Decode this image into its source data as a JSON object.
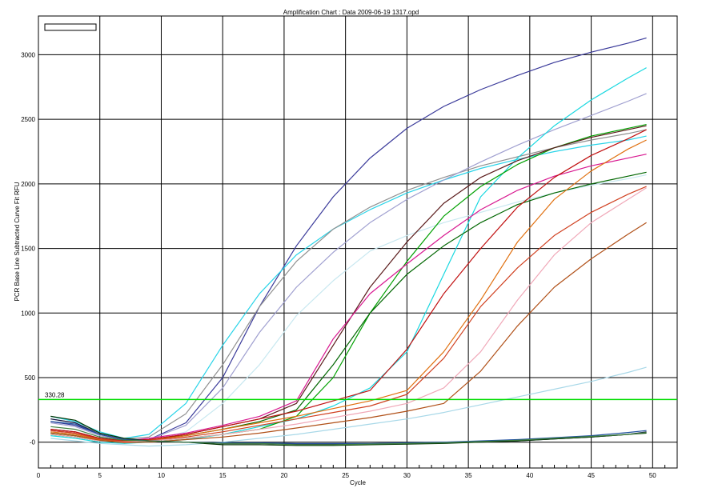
{
  "chart_data": {
    "type": "line",
    "title": "Amplification Chart : Data 2009-06-19 1317.opd",
    "xlabel": "Cycle",
    "ylabel": "PCR Base Line Subtracted Curve Fit RFU",
    "xlim": [
      0,
      52
    ],
    "ylim": [
      -200,
      3300
    ],
    "x_ticks": [
      0,
      5,
      10,
      15,
      20,
      25,
      30,
      35,
      40,
      45,
      50
    ],
    "y_ticks": [
      0,
      500,
      1000,
      1500,
      2000,
      2500,
      3000
    ],
    "y_tick_labels": [
      "-0",
      "500",
      "1000",
      "1500",
      "2000",
      "2500",
      "3000"
    ],
    "grid": true,
    "legend": "top-left (empty box)",
    "threshold": {
      "value": 330.28,
      "label": "330.28",
      "color": "#00dd00"
    },
    "series": [
      {
        "color": "#3a3a9a",
        "x": [
          1,
          3,
          5,
          7,
          9,
          12,
          15,
          18,
          21,
          24,
          27,
          30,
          33,
          36,
          39,
          42,
          45,
          48,
          49.5
        ],
        "y": [
          160,
          130,
          60,
          20,
          20,
          150,
          500,
          1050,
          1520,
          1900,
          2200,
          2430,
          2600,
          2730,
          2840,
          2940,
          3020,
          3090,
          3130
        ]
      },
      {
        "color": "#2ad4e8",
        "x": [
          1,
          3,
          5,
          7,
          9,
          12,
          15,
          18,
          21,
          24,
          27,
          30,
          33,
          36,
          39,
          42,
          45,
          48,
          49.5
        ],
        "y": [
          200,
          160,
          80,
          30,
          60,
          300,
          750,
          1150,
          1450,
          1650,
          1800,
          1930,
          2030,
          2120,
          2190,
          2250,
          2300,
          2340,
          2370
        ]
      },
      {
        "color": "#909090",
        "x": [
          1,
          3,
          5,
          7,
          9,
          12,
          15,
          18,
          21,
          24,
          27,
          30,
          33,
          36,
          39,
          42,
          45,
          48,
          49.5
        ],
        "y": [
          180,
          150,
          70,
          25,
          40,
          220,
          600,
          1050,
          1400,
          1650,
          1820,
          1950,
          2050,
          2140,
          2210,
          2280,
          2340,
          2390,
          2420
        ]
      },
      {
        "color": "#a0a0d0",
        "x": [
          1,
          3,
          5,
          7,
          9,
          12,
          15,
          18,
          21,
          24,
          27,
          30,
          33,
          36,
          39,
          42,
          45,
          48,
          49.5
        ],
        "y": [
          150,
          120,
          50,
          15,
          20,
          130,
          420,
          850,
          1200,
          1470,
          1700,
          1880,
          2030,
          2170,
          2300,
          2420,
          2530,
          2640,
          2700
        ]
      },
      {
        "color": "#c8e8f0",
        "x": [
          1,
          3,
          5,
          7,
          9,
          12,
          15,
          18,
          21,
          24,
          27,
          30,
          33,
          36,
          39,
          42,
          45,
          48,
          49.5
        ],
        "y": [
          80,
          60,
          20,
          0,
          10,
          80,
          300,
          600,
          980,
          1250,
          1480,
          1600,
          1700,
          1780,
          1860,
          1930,
          1990,
          2040,
          2070
        ]
      },
      {
        "color": "#18d8e0",
        "x": [
          1,
          3,
          5,
          7,
          9,
          12,
          15,
          18,
          21,
          24,
          27,
          30,
          33,
          36,
          39,
          42,
          45,
          48,
          49.5
        ],
        "y": [
          50,
          30,
          0,
          -10,
          0,
          20,
          60,
          120,
          180,
          280,
          420,
          700,
          1300,
          1900,
          2200,
          2450,
          2650,
          2820,
          2900
        ]
      },
      {
        "color": "#00a000",
        "x": [
          1,
          3,
          5,
          7,
          9,
          12,
          15,
          18,
          21,
          24,
          27,
          30,
          33,
          36,
          39,
          42,
          45,
          48,
          49.5
        ],
        "y": [
          60,
          40,
          10,
          0,
          10,
          30,
          60,
          100,
          200,
          500,
          1000,
          1400,
          1750,
          1980,
          2150,
          2280,
          2370,
          2430,
          2460
        ]
      },
      {
        "color": "#5a1a1a",
        "x": [
          1,
          3,
          5,
          7,
          9,
          12,
          15,
          18,
          21,
          24,
          27,
          30,
          33,
          36,
          39,
          42,
          45,
          48,
          49.5
        ],
        "y": [
          100,
          80,
          30,
          10,
          20,
          60,
          120,
          180,
          300,
          750,
          1200,
          1550,
          1850,
          2050,
          2180,
          2280,
          2360,
          2420,
          2450
        ]
      },
      {
        "color": "#d81890",
        "x": [
          1,
          3,
          5,
          7,
          9,
          12,
          15,
          18,
          21,
          24,
          27,
          30,
          33,
          36,
          39,
          42,
          45,
          48,
          49.5
        ],
        "y": [
          90,
          70,
          25,
          10,
          30,
          70,
          130,
          200,
          320,
          800,
          1150,
          1380,
          1600,
          1800,
          1950,
          2060,
          2140,
          2200,
          2230
        ]
      },
      {
        "color": "#006600",
        "x": [
          1,
          3,
          5,
          7,
          9,
          12,
          15,
          18,
          21,
          24,
          27,
          30,
          33,
          36,
          39,
          42,
          45,
          48,
          49.5
        ],
        "y": [
          70,
          50,
          15,
          5,
          20,
          50,
          100,
          160,
          250,
          600,
          1000,
          1300,
          1520,
          1700,
          1840,
          1930,
          2000,
          2060,
          2090
        ]
      },
      {
        "color": "#c01010",
        "x": [
          1,
          3,
          5,
          7,
          9,
          12,
          15,
          18,
          21,
          24,
          27,
          30,
          33,
          36,
          39,
          42,
          45,
          48,
          49.5
        ],
        "y": [
          100,
          80,
          30,
          10,
          20,
          60,
          120,
          180,
          240,
          320,
          400,
          720,
          1150,
          1500,
          1820,
          2050,
          2220,
          2350,
          2420
        ]
      },
      {
        "color": "#e07010",
        "x": [
          1,
          3,
          5,
          7,
          9,
          12,
          15,
          18,
          21,
          24,
          27,
          30,
          33,
          36,
          39,
          42,
          45,
          48,
          49.5
        ],
        "y": [
          80,
          60,
          20,
          5,
          15,
          50,
          100,
          150,
          200,
          260,
          320,
          400,
          700,
          1100,
          1550,
          1880,
          2100,
          2270,
          2340
        ]
      },
      {
        "color": "#d04020",
        "x": [
          1,
          3,
          5,
          7,
          9,
          12,
          15,
          18,
          21,
          24,
          27,
          30,
          33,
          36,
          39,
          42,
          45,
          48,
          49.5
        ],
        "y": [
          90,
          70,
          25,
          5,
          15,
          40,
          80,
          130,
          180,
          230,
          280,
          370,
          650,
          1050,
          1350,
          1600,
          1780,
          1920,
          1980
        ]
      },
      {
        "color": "#f0a8b8",
        "x": [
          1,
          3,
          5,
          7,
          9,
          12,
          15,
          18,
          21,
          24,
          27,
          30,
          33,
          36,
          39,
          42,
          45,
          48,
          49.5
        ],
        "y": [
          60,
          40,
          10,
          0,
          10,
          30,
          60,
          100,
          140,
          190,
          240,
          300,
          420,
          700,
          1100,
          1450,
          1700,
          1880,
          1970
        ]
      },
      {
        "color": "#b05018",
        "x": [
          1,
          3,
          5,
          7,
          9,
          12,
          15,
          18,
          21,
          24,
          27,
          30,
          33,
          36,
          39,
          42,
          45,
          48,
          49.5
        ],
        "y": [
          70,
          50,
          15,
          -5,
          0,
          20,
          40,
          70,
          110,
          150,
          190,
          240,
          300,
          550,
          900,
          1200,
          1420,
          1610,
          1700
        ]
      },
      {
        "color": "#a8d8e8",
        "x": [
          1,
          3,
          5,
          7,
          9,
          12,
          15,
          18,
          21,
          24,
          27,
          30,
          33,
          36,
          39,
          42,
          45,
          48,
          49.5
        ],
        "y": [
          30,
          10,
          -10,
          -20,
          -30,
          -20,
          0,
          30,
          60,
          100,
          140,
          180,
          230,
          290,
          350,
          410,
          470,
          540,
          580
        ]
      },
      {
        "color": "#101040",
        "x": [
          1,
          3,
          5,
          7,
          9,
          12,
          15,
          18,
          21,
          24,
          27,
          30,
          33,
          36,
          39,
          42,
          45,
          48,
          49.5
        ],
        "y": [
          180,
          150,
          60,
          20,
          10,
          0,
          -10,
          -10,
          -15,
          -15,
          -15,
          -10,
          -5,
          0,
          10,
          25,
          40,
          60,
          80
        ]
      },
      {
        "color": "#003300",
        "x": [
          1,
          3,
          5,
          7,
          9,
          12,
          15,
          18,
          21,
          24,
          27,
          30,
          33,
          36,
          39,
          42,
          45,
          48,
          49.5
        ],
        "y": [
          200,
          170,
          70,
          30,
          10,
          0,
          -20,
          -20,
          -25,
          -25,
          -20,
          -15,
          -10,
          0,
          10,
          25,
          40,
          60,
          70
        ]
      },
      {
        "color": "#2050a0",
        "x": [
          1,
          3,
          5,
          7,
          9,
          12,
          15,
          18,
          21,
          24,
          27,
          30,
          33,
          36,
          39,
          42,
          45,
          48,
          49.5
        ],
        "y": [
          160,
          140,
          60,
          20,
          10,
          0,
          -5,
          -5,
          -10,
          -10,
          -10,
          -5,
          0,
          10,
          20,
          35,
          50,
          75,
          90
        ]
      },
      {
        "color": "#408040",
        "x": [
          1,
          3,
          5,
          7,
          9,
          12,
          15,
          18,
          21,
          24,
          27,
          30,
          33,
          36,
          39,
          42,
          45,
          48,
          49.5
        ],
        "y": [
          120,
          100,
          40,
          15,
          10,
          0,
          -10,
          -10,
          -20,
          -20,
          -15,
          -10,
          -5,
          5,
          15,
          30,
          45,
          60,
          75
        ]
      }
    ]
  }
}
